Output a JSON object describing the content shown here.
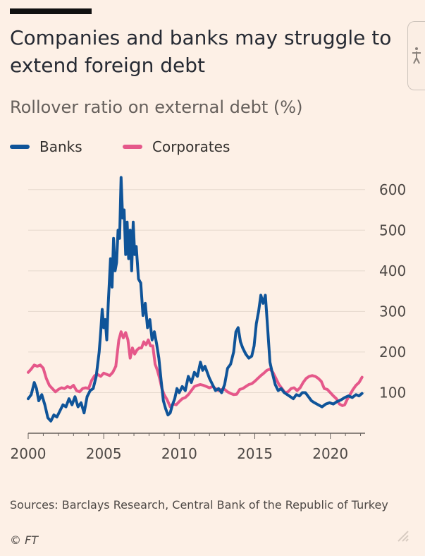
{
  "title": "Companies and banks may struggle to extend foreign debt",
  "subtitle": "Rollover ratio on external debt (%)",
  "legend": {
    "banks": "Banks",
    "corporates": "Corporates"
  },
  "source": "Sources: Barclays Research, Central Bank of the Republic of Turkey",
  "credit": "© FT",
  "icons": {
    "side_button": "accessibility-icon",
    "corner": "resize-grip-icon"
  },
  "colors": {
    "banks": "#0f5499",
    "corporates": "#e5588a",
    "grid": "#e6d9ce",
    "background": "#fdf0e6"
  },
  "chart_data": {
    "type": "line",
    "title": "",
    "xlabel": "",
    "ylabel": "",
    "xlim": [
      2000,
      2022.3
    ],
    "ylim": [
      0,
      650
    ],
    "y_ticks": [
      100,
      200,
      300,
      400,
      500,
      600
    ],
    "x_ticks": [
      2000,
      2005,
      2010,
      2015,
      2020
    ],
    "grid": true,
    "legend_position": "top-left",
    "series": [
      {
        "name": "Banks",
        "color": "#0f5499",
        "points": [
          [
            2000.0,
            85
          ],
          [
            2000.2,
            95
          ],
          [
            2000.4,
            125
          ],
          [
            2000.55,
            110
          ],
          [
            2000.7,
            80
          ],
          [
            2000.9,
            95
          ],
          [
            2001.1,
            70
          ],
          [
            2001.3,
            38
          ],
          [
            2001.5,
            30
          ],
          [
            2001.7,
            45
          ],
          [
            2001.9,
            40
          ],
          [
            2002.1,
            55
          ],
          [
            2002.3,
            70
          ],
          [
            2002.5,
            65
          ],
          [
            2002.7,
            85
          ],
          [
            2002.9,
            70
          ],
          [
            2003.1,
            90
          ],
          [
            2003.3,
            65
          ],
          [
            2003.5,
            75
          ],
          [
            2003.7,
            50
          ],
          [
            2003.9,
            90
          ],
          [
            2004.1,
            105
          ],
          [
            2004.3,
            110
          ],
          [
            2004.5,
            140
          ],
          [
            2004.7,
            200
          ],
          [
            2004.8,
            250
          ],
          [
            2004.9,
            305
          ],
          [
            2005.0,
            260
          ],
          [
            2005.1,
            280
          ],
          [
            2005.2,
            230
          ],
          [
            2005.3,
            320
          ],
          [
            2005.45,
            430
          ],
          [
            2005.55,
            360
          ],
          [
            2005.65,
            480
          ],
          [
            2005.75,
            400
          ],
          [
            2005.85,
            420
          ],
          [
            2005.95,
            500
          ],
          [
            2006.05,
            480
          ],
          [
            2006.15,
            630
          ],
          [
            2006.25,
            530
          ],
          [
            2006.35,
            550
          ],
          [
            2006.45,
            440
          ],
          [
            2006.55,
            520
          ],
          [
            2006.65,
            430
          ],
          [
            2006.75,
            500
          ],
          [
            2006.85,
            400
          ],
          [
            2006.95,
            520
          ],
          [
            2007.05,
            440
          ],
          [
            2007.15,
            460
          ],
          [
            2007.3,
            380
          ],
          [
            2007.45,
            370
          ],
          [
            2007.6,
            290
          ],
          [
            2007.75,
            320
          ],
          [
            2007.9,
            260
          ],
          [
            2008.05,
            280
          ],
          [
            2008.2,
            230
          ],
          [
            2008.35,
            250
          ],
          [
            2008.5,
            220
          ],
          [
            2008.65,
            185
          ],
          [
            2008.8,
            130
          ],
          [
            2008.95,
            80
          ],
          [
            2009.1,
            60
          ],
          [
            2009.25,
            45
          ],
          [
            2009.4,
            50
          ],
          [
            2009.55,
            70
          ],
          [
            2009.7,
            85
          ],
          [
            2009.85,
            110
          ],
          [
            2010.0,
            100
          ],
          [
            2010.2,
            115
          ],
          [
            2010.4,
            105
          ],
          [
            2010.6,
            140
          ],
          [
            2010.8,
            125
          ],
          [
            2011.0,
            150
          ],
          [
            2011.2,
            140
          ],
          [
            2011.4,
            175
          ],
          [
            2011.55,
            155
          ],
          [
            2011.7,
            165
          ],
          [
            2011.85,
            150
          ],
          [
            2012.0,
            135
          ],
          [
            2012.2,
            120
          ],
          [
            2012.4,
            105
          ],
          [
            2012.6,
            110
          ],
          [
            2012.8,
            100
          ],
          [
            2013.0,
            120
          ],
          [
            2013.2,
            160
          ],
          [
            2013.4,
            170
          ],
          [
            2013.6,
            200
          ],
          [
            2013.75,
            250
          ],
          [
            2013.9,
            260
          ],
          [
            2014.05,
            225
          ],
          [
            2014.2,
            210
          ],
          [
            2014.4,
            195
          ],
          [
            2014.6,
            185
          ],
          [
            2014.8,
            190
          ],
          [
            2014.95,
            215
          ],
          [
            2015.1,
            270
          ],
          [
            2015.25,
            300
          ],
          [
            2015.4,
            340
          ],
          [
            2015.55,
            320
          ],
          [
            2015.7,
            340
          ],
          [
            2015.85,
            260
          ],
          [
            2016.0,
            175
          ],
          [
            2016.15,
            150
          ],
          [
            2016.35,
            120
          ],
          [
            2016.55,
            105
          ],
          [
            2016.75,
            110
          ],
          [
            2016.95,
            100
          ],
          [
            2017.15,
            95
          ],
          [
            2017.35,
            90
          ],
          [
            2017.55,
            85
          ],
          [
            2017.75,
            95
          ],
          [
            2017.95,
            92
          ],
          [
            2018.15,
            100
          ],
          [
            2018.35,
            100
          ],
          [
            2018.55,
            90
          ],
          [
            2018.75,
            80
          ],
          [
            2018.95,
            75
          ],
          [
            2019.2,
            70
          ],
          [
            2019.45,
            65
          ],
          [
            2019.7,
            72
          ],
          [
            2019.95,
            75
          ],
          [
            2020.2,
            72
          ],
          [
            2020.45,
            78
          ],
          [
            2020.7,
            82
          ],
          [
            2020.95,
            88
          ],
          [
            2021.2,
            92
          ],
          [
            2021.45,
            88
          ],
          [
            2021.7,
            95
          ],
          [
            2021.9,
            92
          ],
          [
            2022.1,
            98
          ]
        ]
      },
      {
        "name": "Corporates",
        "color": "#e5588a",
        "points": [
          [
            2000.0,
            150
          ],
          [
            2000.2,
            158
          ],
          [
            2000.4,
            168
          ],
          [
            2000.6,
            165
          ],
          [
            2000.8,
            168
          ],
          [
            2001.0,
            160
          ],
          [
            2001.2,
            135
          ],
          [
            2001.4,
            118
          ],
          [
            2001.6,
            110
          ],
          [
            2001.8,
            102
          ],
          [
            2002.0,
            108
          ],
          [
            2002.2,
            112
          ],
          [
            2002.4,
            110
          ],
          [
            2002.6,
            115
          ],
          [
            2002.8,
            112
          ],
          [
            2003.0,
            118
          ],
          [
            2003.2,
            105
          ],
          [
            2003.4,
            102
          ],
          [
            2003.6,
            110
          ],
          [
            2003.8,
            112
          ],
          [
            2004.0,
            110
          ],
          [
            2004.2,
            130
          ],
          [
            2004.4,
            142
          ],
          [
            2004.6,
            145
          ],
          [
            2004.8,
            140
          ],
          [
            2005.0,
            148
          ],
          [
            2005.2,
            145
          ],
          [
            2005.4,
            142
          ],
          [
            2005.6,
            150
          ],
          [
            2005.8,
            165
          ],
          [
            2006.0,
            230
          ],
          [
            2006.15,
            250
          ],
          [
            2006.3,
            235
          ],
          [
            2006.45,
            248
          ],
          [
            2006.6,
            230
          ],
          [
            2006.75,
            185
          ],
          [
            2006.9,
            210
          ],
          [
            2007.05,
            195
          ],
          [
            2007.2,
            205
          ],
          [
            2007.35,
            210
          ],
          [
            2007.5,
            210
          ],
          [
            2007.65,
            225
          ],
          [
            2007.8,
            218
          ],
          [
            2007.95,
            230
          ],
          [
            2008.1,
            215
          ],
          [
            2008.25,
            215
          ],
          [
            2008.4,
            170
          ],
          [
            2008.55,
            155
          ],
          [
            2008.7,
            135
          ],
          [
            2008.85,
            110
          ],
          [
            2009.0,
            95
          ],
          [
            2009.2,
            82
          ],
          [
            2009.4,
            65
          ],
          [
            2009.6,
            72
          ],
          [
            2009.8,
            70
          ],
          [
            2010.0,
            78
          ],
          [
            2010.2,
            85
          ],
          [
            2010.4,
            88
          ],
          [
            2010.6,
            95
          ],
          [
            2010.8,
            105
          ],
          [
            2011.0,
            115
          ],
          [
            2011.2,
            118
          ],
          [
            2011.4,
            120
          ],
          [
            2011.6,
            118
          ],
          [
            2011.8,
            115
          ],
          [
            2012.0,
            112
          ],
          [
            2012.2,
            115
          ],
          [
            2012.4,
            110
          ],
          [
            2012.6,
            105
          ],
          [
            2012.8,
            108
          ],
          [
            2013.0,
            108
          ],
          [
            2013.2,
            102
          ],
          [
            2013.4,
            98
          ],
          [
            2013.6,
            95
          ],
          [
            2013.8,
            96
          ],
          [
            2014.0,
            108
          ],
          [
            2014.2,
            110
          ],
          [
            2014.4,
            115
          ],
          [
            2014.6,
            120
          ],
          [
            2014.8,
            122
          ],
          [
            2015.0,
            128
          ],
          [
            2015.2,
            135
          ],
          [
            2015.4,
            142
          ],
          [
            2015.6,
            148
          ],
          [
            2015.8,
            155
          ],
          [
            2016.0,
            158
          ],
          [
            2016.2,
            150
          ],
          [
            2016.4,
            135
          ],
          [
            2016.6,
            120
          ],
          [
            2016.8,
            110
          ],
          [
            2017.0,
            100
          ],
          [
            2017.2,
            102
          ],
          [
            2017.4,
            110
          ],
          [
            2017.6,
            112
          ],
          [
            2017.8,
            105
          ],
          [
            2018.0,
            112
          ],
          [
            2018.2,
            125
          ],
          [
            2018.4,
            135
          ],
          [
            2018.6,
            140
          ],
          [
            2018.8,
            142
          ],
          [
            2019.0,
            140
          ],
          [
            2019.2,
            135
          ],
          [
            2019.4,
            128
          ],
          [
            2019.6,
            110
          ],
          [
            2019.8,
            108
          ],
          [
            2020.0,
            100
          ],
          [
            2020.2,
            92
          ],
          [
            2020.4,
            85
          ],
          [
            2020.6,
            72
          ],
          [
            2020.8,
            68
          ],
          [
            2020.95,
            70
          ],
          [
            2021.1,
            82
          ],
          [
            2021.3,
            95
          ],
          [
            2021.5,
            108
          ],
          [
            2021.7,
            118
          ],
          [
            2021.9,
            125
          ],
          [
            2022.1,
            138
          ]
        ]
      }
    ]
  }
}
